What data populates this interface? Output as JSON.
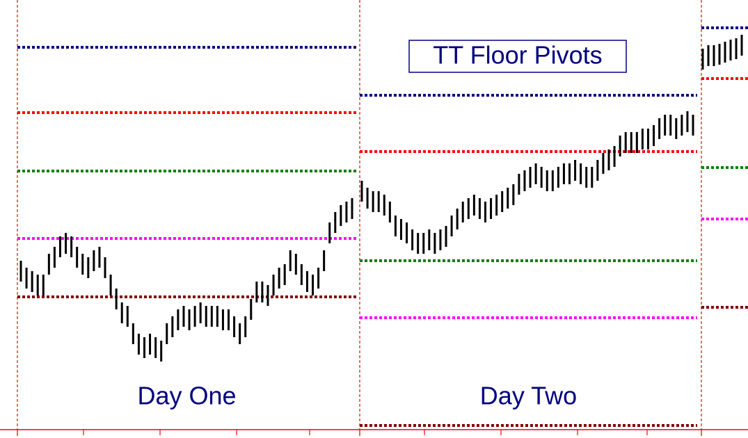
{
  "chart_data": {
    "type": "ohlc",
    "title": "TT Floor Pivots",
    "ylim": [
      0,
      630
    ],
    "bar_color": "#000000",
    "pivot_colors": [
      "#000080",
      "#ff0000",
      "#008000",
      "#ff00ff",
      "#800000"
    ],
    "days": [
      {
        "label": "Day One",
        "pivots": [
          562,
          468,
          384,
          287,
          203
        ],
        "high": [
          255,
          245,
          240,
          235,
          235,
          265,
          275,
          290,
          295,
          290,
          275,
          265,
          260,
          270,
          275,
          260,
          235,
          215,
          195,
          190,
          165,
          150,
          145,
          150,
          145,
          140,
          165,
          175,
          185,
          190,
          185,
          190,
          195,
          190,
          190,
          190,
          185,
          185,
          175,
          165,
          175,
          200,
          225,
          225,
          220,
          235,
          245,
          250,
          270,
          265,
          250,
          240,
          235,
          245,
          270,
          310,
          325,
          335,
          340,
          345
        ],
        "low": [
          225,
          215,
          210,
          205,
          205,
          235,
          245,
          260,
          265,
          260,
          245,
          235,
          230,
          240,
          245,
          230,
          205,
          185,
          165,
          160,
          135,
          120,
          115,
          120,
          115,
          110,
          135,
          145,
          155,
          160,
          155,
          160,
          165,
          160,
          160,
          160,
          155,
          155,
          145,
          135,
          145,
          170,
          195,
          195,
          190,
          205,
          215,
          220,
          240,
          235,
          220,
          210,
          205,
          215,
          240,
          280,
          295,
          305,
          310,
          315
        ]
      },
      {
        "label": "Day Two",
        "pivots": [
          493,
          412,
          255,
          173,
          18
        ],
        "high": [
          370,
          360,
          355,
          355,
          350,
          340,
          320,
          315,
          310,
          300,
          295,
          295,
          300,
          295,
          300,
          305,
          320,
          330,
          340,
          345,
          350,
          345,
          340,
          345,
          350,
          355,
          360,
          365,
          380,
          385,
          390,
          395,
          390,
          385,
          385,
          390,
          395,
          395,
          400,
          395,
          390,
          390,
          400,
          410,
          415,
          420,
          435,
          440,
          440,
          440,
          445,
          445,
          450,
          460,
          465,
          465,
          460,
          465,
          470,
          465
        ],
        "low": [
          340,
          330,
          325,
          325,
          320,
          310,
          290,
          285,
          280,
          270,
          265,
          265,
          270,
          265,
          270,
          275,
          290,
          300,
          310,
          315,
          320,
          315,
          310,
          315,
          320,
          325,
          330,
          335,
          350,
          355,
          360,
          365,
          360,
          355,
          355,
          360,
          365,
          365,
          370,
          365,
          360,
          360,
          370,
          380,
          385,
          390,
          405,
          410,
          410,
          410,
          415,
          415,
          420,
          430,
          435,
          435,
          430,
          435,
          440,
          435
        ]
      },
      {
        "pivots": [
          590,
          517,
          389,
          315,
          188
        ],
        "high": [
          560,
          565,
          565,
          567,
          570,
          573,
          575,
          580
        ],
        "low": [
          530,
          535,
          535,
          537,
          540,
          543,
          545,
          550
        ]
      }
    ]
  }
}
